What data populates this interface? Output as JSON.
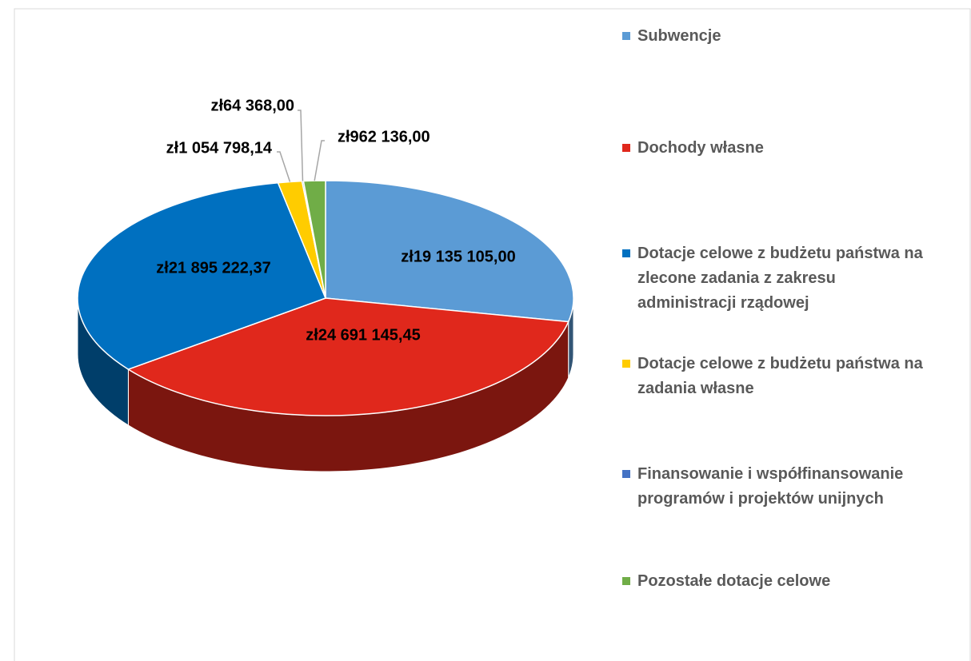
{
  "chart_data": {
    "type": "pie",
    "categories": [
      "Subwencje",
      "Dochody własne",
      "Dotacje celowe z budżetu państwa na zlecone zadania z zakresu administracji rządowej",
      "Dotacje celowe z budżetu państwa na zadania własne",
      "Finansowanie i współfinansowanie programów i projektów unijnych",
      "Pozostałe dotacje celowe"
    ],
    "values": [
      19135105.0,
      24691145.45,
      21895222.37,
      1054798.14,
      64368.0,
      962136.0
    ],
    "value_labels": [
      "zł19 135 105,00",
      "zł24 691 145,45",
      "zł21 895 222,37",
      "zł1 054 798,14",
      "zł64 368,00",
      "zł962 136,00"
    ],
    "colors": [
      "#5b9bd5",
      "#e0281c",
      "#0070c0",
      "#ffcc00",
      "#4472c4",
      "#70ad47"
    ],
    "legend": "right"
  }
}
